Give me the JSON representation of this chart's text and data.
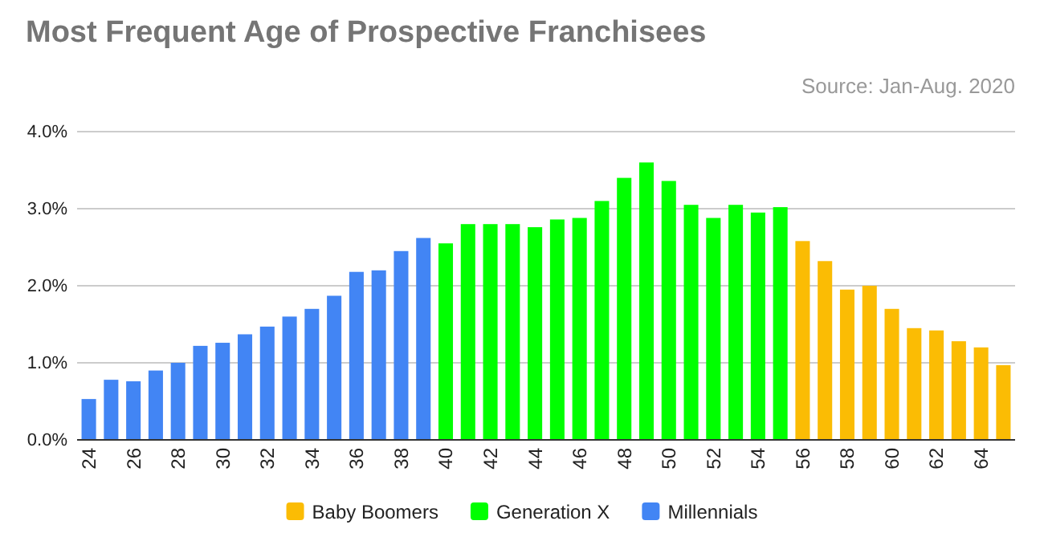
{
  "chart_data": {
    "type": "bar",
    "title": "Most Frequent Age of Prospective Franchisees",
    "annotations": [
      "Source: Jan-Aug. 2020"
    ],
    "categories": [
      "24",
      null,
      "26",
      null,
      "28",
      null,
      "30",
      null,
      "32",
      null,
      "34",
      null,
      "36",
      null,
      "38",
      null,
      "40",
      null,
      "42",
      null,
      "44",
      null,
      "46",
      null,
      "48",
      null,
      "50",
      null,
      "52",
      null,
      "54",
      null,
      "56",
      null,
      "58",
      null,
      "60",
      null,
      "62",
      null,
      "64",
      null
    ],
    "series": [
      {
        "name": "Baby Boomers",
        "color": "#fbbc04",
        "values": [
          null,
          null,
          null,
          null,
          null,
          null,
          null,
          null,
          null,
          null,
          null,
          null,
          null,
          null,
          null,
          null,
          null,
          null,
          null,
          null,
          null,
          null,
          null,
          null,
          null,
          null,
          null,
          null,
          null,
          null,
          null,
          null,
          2.58,
          2.32,
          1.95,
          2.0,
          1.7,
          1.45,
          1.42,
          1.28,
          1.2,
          0.97
        ]
      },
      {
        "name": "Generation X",
        "color": "#00ff00",
        "values": [
          null,
          null,
          null,
          null,
          null,
          null,
          null,
          null,
          null,
          null,
          null,
          null,
          null,
          null,
          null,
          null,
          2.55,
          2.8,
          2.8,
          2.8,
          2.76,
          2.86,
          2.88,
          3.1,
          3.4,
          3.6,
          3.36,
          3.05,
          2.88,
          3.05,
          2.95,
          3.02,
          null,
          null,
          null,
          null,
          null,
          null,
          null,
          null,
          null,
          null
        ]
      },
      {
        "name": "Millennials",
        "color": "#4285f4",
        "values": [
          0.53,
          0.78,
          0.76,
          0.9,
          1.0,
          1.22,
          1.26,
          1.37,
          1.47,
          1.6,
          1.7,
          1.87,
          2.18,
          2.2,
          2.45,
          2.62,
          null,
          null,
          null,
          null,
          null,
          null,
          null,
          null,
          null,
          null,
          null,
          null,
          null,
          null,
          null,
          null,
          null,
          null,
          null,
          null,
          null,
          null,
          null,
          null,
          null,
          null
        ]
      }
    ],
    "ylim": [
      0,
      4
    ],
    "yticks": [
      {
        "value": 0,
        "label": "0.0%"
      },
      {
        "value": 1,
        "label": "1.0%"
      },
      {
        "value": 2,
        "label": "2.0%"
      },
      {
        "value": 3,
        "label": "3.0%"
      },
      {
        "value": 4,
        "label": "4.0%"
      }
    ],
    "grid": "y",
    "legend": "bottom"
  }
}
